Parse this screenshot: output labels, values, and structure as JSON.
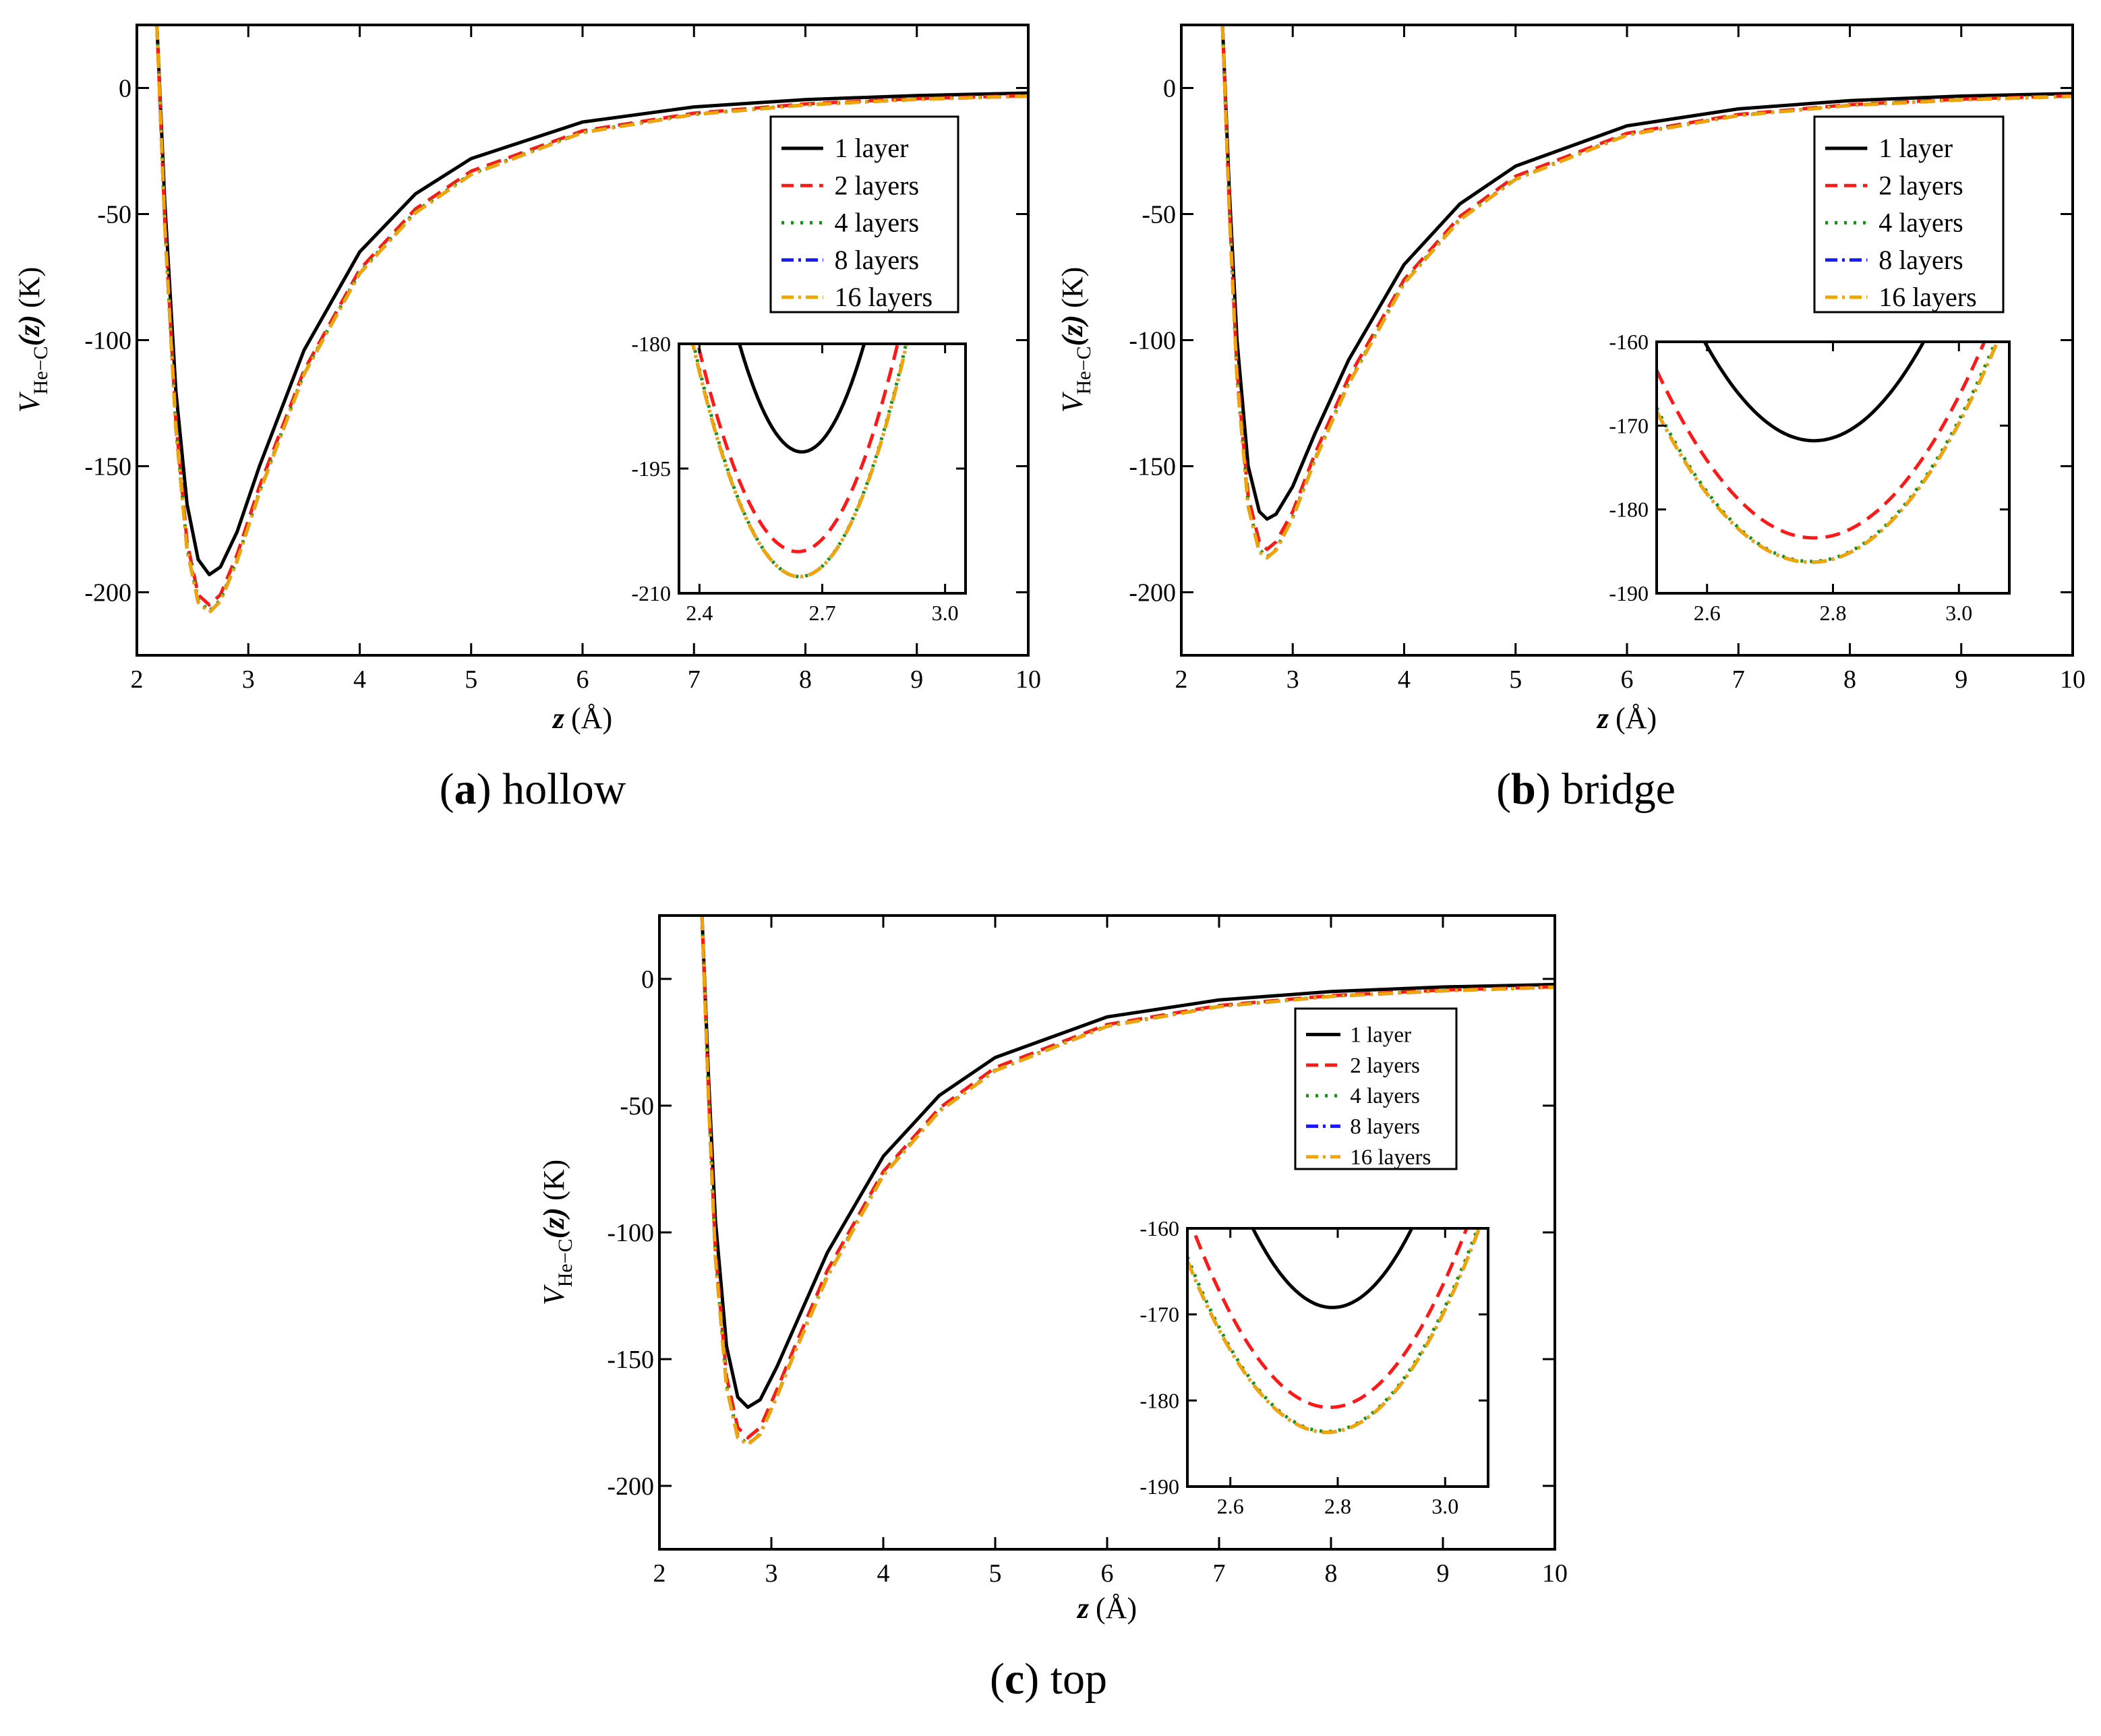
{
  "colors": {
    "1 layer": "#000000",
    "2 layers": "#ff1a1a",
    "4 layers": "#1a8f1a",
    "8 layers": "#1a1aff",
    "16 layers": "#f0a500"
  },
  "chart_data": [
    {
      "type": "line",
      "panel": "a",
      "caption_letter": "a",
      "caption_text": "hollow",
      "xlabel_var": "z",
      "xlabel_unit": "(Å)",
      "ylabel_var": "V",
      "ylabel_sub": "He−C",
      "ylabel_arg": "(z)",
      "ylabel_unit": "(K)",
      "xlim": [
        2,
        10
      ],
      "ylim": [
        -225,
        25
      ],
      "xticks": [
        2,
        3,
        4,
        5,
        6,
        7,
        8,
        9,
        10
      ],
      "yticks": [
        0,
        -50,
        -100,
        -150,
        -200
      ],
      "legend": [
        "1   layer",
        "2   layers",
        "4   layers",
        "8   layers",
        "16 layers"
      ],
      "legend_position": "top-right",
      "series": [
        {
          "name": "1 layer",
          "x": [
            2.18,
            2.25,
            2.35,
            2.45,
            2.55,
            2.65,
            2.75,
            2.9,
            3.1,
            3.5,
            4.0,
            4.5,
            5.0,
            6.0,
            7.0,
            8.0,
            9.0,
            10.0
          ],
          "y": [
            25,
            -45,
            -120,
            -165,
            -187,
            -193,
            -190,
            -176,
            -150,
            -104,
            -65,
            -42,
            -28,
            -13.5,
            -7.5,
            -4.6,
            -3.0,
            -2.0
          ]
        },
        {
          "name": "2 layers",
          "x": [
            2.18,
            2.25,
            2.35,
            2.45,
            2.55,
            2.65,
            2.75,
            2.9,
            3.1,
            3.5,
            4.0,
            4.5,
            5.0,
            6.0,
            7.0,
            8.0,
            9.0,
            10.0
          ],
          "y": [
            25,
            -52,
            -132,
            -180,
            -201,
            -205,
            -201,
            -185,
            -158,
            -112,
            -72,
            -48,
            -33,
            -17,
            -10,
            -6.3,
            -4.2,
            -3.0
          ]
        },
        {
          "name": "4 layers",
          "x": [
            2.18,
            2.25,
            2.35,
            2.45,
            2.55,
            2.65,
            2.75,
            2.9,
            3.1,
            3.5,
            4.0,
            4.5,
            5.0,
            6.0,
            7.0,
            8.0,
            9.0,
            10.0
          ],
          "y": [
            25,
            -53,
            -134,
            -182,
            -203,
            -207.5,
            -203,
            -187,
            -160,
            -113,
            -73,
            -49,
            -34,
            -17.5,
            -10.4,
            -6.6,
            -4.4,
            -3.1
          ]
        },
        {
          "name": "8 layers",
          "x": [
            2.18,
            2.25,
            2.35,
            2.45,
            2.55,
            2.65,
            2.75,
            2.9,
            3.1,
            3.5,
            4.0,
            4.5,
            5.0,
            6.0,
            7.0,
            8.0,
            9.0,
            10.0
          ],
          "y": [
            25,
            -54,
            -135,
            -183,
            -204,
            -208,
            -203.5,
            -187.5,
            -160.5,
            -113.5,
            -73.5,
            -49.5,
            -34.3,
            -17.7,
            -10.5,
            -6.7,
            -4.5,
            -3.2
          ]
        },
        {
          "name": "16 layers",
          "x": [
            2.18,
            2.25,
            2.35,
            2.45,
            2.55,
            2.65,
            2.75,
            2.9,
            3.1,
            3.5,
            4.0,
            4.5,
            5.0,
            6.0,
            7.0,
            8.0,
            9.0,
            10.0
          ],
          "y": [
            25,
            -54,
            -135,
            -183,
            -204,
            -208,
            -203.5,
            -187.5,
            -160.5,
            -113.5,
            -73.5,
            -49.5,
            -34.3,
            -17.7,
            -10.5,
            -6.7,
            -4.5,
            -3.2
          ]
        }
      ],
      "inset": {
        "xlim": [
          2.35,
          3.05
        ],
        "ylim": [
          -210,
          -180
        ],
        "xticks": [
          2.4,
          2.7,
          3.0
        ],
        "xtick_labels": [
          "2.4",
          "2.7",
          "3.0"
        ],
        "yticks": [
          -180,
          -195,
          -210
        ],
        "series": [
          {
            "name": "1 layer",
            "min_x": 2.65,
            "min_y": -193,
            "curvature": 560
          },
          {
            "name": "2 layers",
            "min_x": 2.64,
            "min_y": -205,
            "curvature": 420
          },
          {
            "name": "4 layers",
            "min_x": 2.645,
            "min_y": -208,
            "curvature": 415
          },
          {
            "name": "8 layers",
            "min_x": 2.645,
            "min_y": -208,
            "curvature": 410
          },
          {
            "name": "16 layers",
            "min_x": 2.645,
            "min_y": -208,
            "curvature": 410
          }
        ]
      }
    },
    {
      "type": "line",
      "panel": "b",
      "caption_letter": "b",
      "caption_text": "bridge",
      "xlabel_var": "z",
      "xlabel_unit": "(Å)",
      "ylabel_var": "V",
      "ylabel_sub": "He−C",
      "ylabel_arg": "(z)",
      "ylabel_unit": "(K)",
      "xlim": [
        2,
        10
      ],
      "ylim": [
        -225,
        25
      ],
      "xticks": [
        2,
        3,
        4,
        5,
        6,
        7,
        8,
        9,
        10
      ],
      "yticks": [
        0,
        -50,
        -100,
        -150,
        -200
      ],
      "legend": [
        "1   layer",
        "2   layers",
        "4   layers",
        "8   layers",
        "16 layers"
      ],
      "legend_position": "top-right",
      "series": [
        {
          "name": "1 layer",
          "x": [
            2.37,
            2.43,
            2.5,
            2.6,
            2.7,
            2.77,
            2.85,
            3.0,
            3.2,
            3.5,
            4.0,
            4.5,
            5.0,
            6.0,
            7.0,
            8.0,
            9.0,
            10.0
          ],
          "y": [
            25,
            -40,
            -100,
            -150,
            -168,
            -171,
            -169,
            -158,
            -137,
            -108,
            -70,
            -46,
            -31,
            -15,
            -8.3,
            -5.0,
            -3.2,
            -2.2
          ]
        },
        {
          "name": "2 layers",
          "x": [
            2.37,
            2.43,
            2.5,
            2.6,
            2.7,
            2.77,
            2.85,
            3.0,
            3.2,
            3.5,
            4.0,
            4.5,
            5.0,
            6.0,
            7.0,
            8.0,
            9.0,
            10.0
          ],
          "y": [
            25,
            -46,
            -112,
            -162,
            -180,
            -183,
            -180,
            -168,
            -145,
            -115,
            -76,
            -51,
            -35,
            -18,
            -10.5,
            -6.6,
            -4.4,
            -3.1
          ]
        },
        {
          "name": "4 layers",
          "x": [
            2.37,
            2.43,
            2.5,
            2.6,
            2.7,
            2.77,
            2.85,
            3.0,
            3.2,
            3.5,
            4.0,
            4.5,
            5.0,
            6.0,
            7.0,
            8.0,
            9.0,
            10.0
          ],
          "y": [
            25,
            -47,
            -114,
            -165,
            -183,
            -186,
            -183,
            -170,
            -147,
            -117,
            -77,
            -52,
            -36,
            -18.5,
            -10.8,
            -6.8,
            -4.6,
            -3.2
          ]
        },
        {
          "name": "8 layers",
          "x": [
            2.37,
            2.43,
            2.5,
            2.6,
            2.7,
            2.77,
            2.85,
            3.0,
            3.2,
            3.5,
            4.0,
            4.5,
            5.0,
            6.0,
            7.0,
            8.0,
            9.0,
            10.0
          ],
          "y": [
            25,
            -48,
            -115,
            -166,
            -184,
            -186.3,
            -183.3,
            -170.5,
            -147.5,
            -117.5,
            -77.5,
            -52.3,
            -36.2,
            -18.7,
            -10.9,
            -6.9,
            -4.7,
            -3.3
          ]
        },
        {
          "name": "16 layers",
          "x": [
            2.37,
            2.43,
            2.5,
            2.6,
            2.7,
            2.77,
            2.85,
            3.0,
            3.2,
            3.5,
            4.0,
            4.5,
            5.0,
            6.0,
            7.0,
            8.0,
            9.0,
            10.0
          ],
          "y": [
            25,
            -48,
            -115,
            -166,
            -184,
            -186.3,
            -183.3,
            -170.5,
            -147.5,
            -117.5,
            -77.5,
            -52.3,
            -36.2,
            -18.7,
            -10.9,
            -6.9,
            -4.7,
            -3.3
          ]
        }
      ],
      "inset": {
        "xlim": [
          2.52,
          3.08
        ],
        "ylim": [
          -190,
          -160
        ],
        "xticks": [
          2.6,
          2.8,
          3.0
        ],
        "xtick_labels": [
          "2.6",
          "2.8",
          "3.0"
        ],
        "yticks": [
          -160,
          -170,
          -180,
          -190
        ],
        "series": [
          {
            "name": "1 layer",
            "min_x": 2.77,
            "min_y": -171.8,
            "curvature": 390
          },
          {
            "name": "2 layers",
            "min_x": 2.77,
            "min_y": -183.4,
            "curvature": 320
          },
          {
            "name": "4 layers",
            "min_x": 2.765,
            "min_y": -186.2,
            "curvature": 305
          },
          {
            "name": "8 layers",
            "min_x": 2.765,
            "min_y": -186.3,
            "curvature": 300
          },
          {
            "name": "16 layers",
            "min_x": 2.765,
            "min_y": -186.3,
            "curvature": 300
          }
        ]
      }
    },
    {
      "type": "line",
      "panel": "c",
      "caption_letter": "c",
      "caption_text": "top",
      "xlabel_var": "z",
      "xlabel_unit": "(Å)",
      "ylabel_var": "V",
      "ylabel_sub": "He−C",
      "ylabel_arg": "(z)",
      "ylabel_unit": "(K)",
      "xlim": [
        2,
        10
      ],
      "ylim": [
        -225,
        25
      ],
      "xticks": [
        2,
        3,
        4,
        5,
        6,
        7,
        8,
        9,
        10
      ],
      "yticks": [
        0,
        -50,
        -100,
        -150,
        -200
      ],
      "legend": [
        "1   layer",
        "2   layers",
        "4   layers",
        "8   layers",
        "16 layers"
      ],
      "legend_position": "top-right",
      "series": [
        {
          "name": "1 layer",
          "x": [
            2.38,
            2.44,
            2.5,
            2.6,
            2.7,
            2.79,
            2.9,
            3.05,
            3.2,
            3.5,
            4.0,
            4.5,
            5.0,
            6.0,
            7.0,
            8.0,
            9.0,
            10.0
          ],
          "y": [
            25,
            -40,
            -95,
            -145,
            -165,
            -169,
            -166,
            -153,
            -138,
            -108,
            -70,
            -46,
            -31,
            -15,
            -8.3,
            -5.0,
            -3.2,
            -2.2
          ]
        },
        {
          "name": "2 layers",
          "x": [
            2.38,
            2.44,
            2.5,
            2.6,
            2.7,
            2.79,
            2.9,
            3.05,
            3.2,
            3.5,
            4.0,
            4.5,
            5.0,
            6.0,
            7.0,
            8.0,
            9.0,
            10.0
          ],
          "y": [
            25,
            -46,
            -107,
            -157,
            -177,
            -181,
            -177,
            -162,
            -146,
            -115,
            -76,
            -51,
            -35,
            -18,
            -10.5,
            -6.6,
            -4.4,
            -3.1
          ]
        },
        {
          "name": "4 layers",
          "x": [
            2.38,
            2.44,
            2.5,
            2.6,
            2.7,
            2.79,
            2.9,
            3.05,
            3.2,
            3.5,
            4.0,
            4.5,
            5.0,
            6.0,
            7.0,
            8.0,
            9.0,
            10.0
          ],
          "y": [
            25,
            -47,
            -109,
            -160,
            -180,
            -183.6,
            -179.5,
            -164.5,
            -148,
            -117,
            -77,
            -52,
            -36,
            -18.5,
            -10.8,
            -6.8,
            -4.6,
            -3.2
          ]
        },
        {
          "name": "8 layers",
          "x": [
            2.38,
            2.44,
            2.5,
            2.6,
            2.7,
            2.79,
            2.9,
            3.05,
            3.2,
            3.5,
            4.0,
            4.5,
            5.0,
            6.0,
            7.0,
            8.0,
            9.0,
            10.0
          ],
          "y": [
            25,
            -48,
            -110,
            -161,
            -181,
            -183.7,
            -179.7,
            -164.7,
            -148.3,
            -117.5,
            -77.5,
            -52.3,
            -36.2,
            -18.7,
            -10.9,
            -6.9,
            -4.7,
            -3.3
          ]
        },
        {
          "name": "16 layers",
          "x": [
            2.38,
            2.44,
            2.5,
            2.6,
            2.7,
            2.79,
            2.9,
            3.05,
            3.2,
            3.5,
            4.0,
            4.5,
            5.0,
            6.0,
            7.0,
            8.0,
            9.0,
            10.0
          ],
          "y": [
            25,
            -48,
            -110,
            -161,
            -181,
            -183.7,
            -179.7,
            -164.7,
            -148.3,
            -117.5,
            -77.5,
            -52.3,
            -36.2,
            -18.7,
            -10.9,
            -6.9,
            -4.7,
            -3.3
          ]
        }
      ],
      "inset": {
        "xlim": [
          2.52,
          3.08
        ],
        "ylim": [
          -190,
          -160
        ],
        "xticks": [
          2.6,
          2.8,
          3.0
        ],
        "xtick_labels": [
          "2.6",
          "2.8",
          "3.0"
        ],
        "yticks": [
          -160,
          -170,
          -180,
          -190
        ],
        "series": [
          {
            "name": "1 layer",
            "min_x": 2.79,
            "min_y": -169.2,
            "curvature": 420
          },
          {
            "name": "2 layers",
            "min_x": 2.785,
            "min_y": -180.8,
            "curvature": 320
          },
          {
            "name": "4 layers",
            "min_x": 2.78,
            "min_y": -183.6,
            "curvature": 300
          },
          {
            "name": "8 layers",
            "min_x": 2.78,
            "min_y": -183.7,
            "curvature": 295
          },
          {
            "name": "16 layers",
            "min_x": 2.78,
            "min_y": -183.7,
            "curvature": 295
          }
        ]
      }
    }
  ]
}
